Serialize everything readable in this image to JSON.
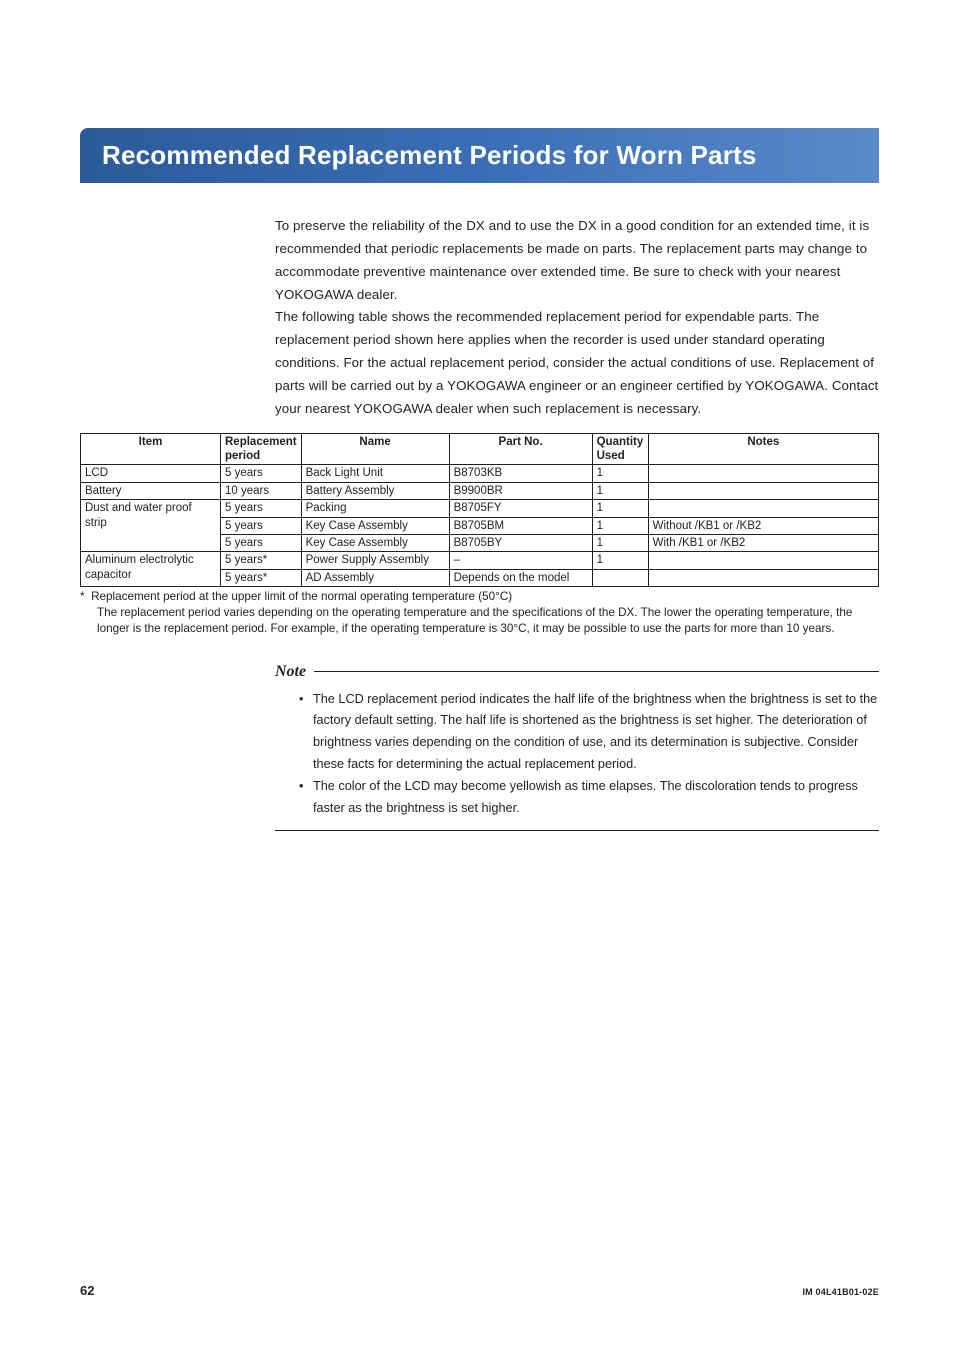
{
  "title": "Recommended Replacement Periods for Worn Parts",
  "intro_paragraphs": [
    "To preserve the reliability of the DX and to use the DX in a good condition for an extended time, it is recommended that periodic replacements be made on parts. The replacement parts may change to accommodate preventive maintenance over extended time. Be sure to check with your nearest YOKOGAWA dealer.",
    "The following table shows the recommended replacement period for expendable parts. The replacement period shown here applies when the recorder is used under standard operating conditions. For the actual replacement period, consider the actual conditions of use. Replacement of parts will be carried out by a YOKOGAWA engineer or an engineer certified by YOKOGAWA. Contact your nearest YOKOGAWA dealer when such replacement is necessary."
  ],
  "table": {
    "columns": [
      "Item",
      "Replacement period",
      "Name",
      "Part No.",
      "Quantity Used",
      "Notes"
    ],
    "column_align": [
      "center",
      "left",
      "center",
      "center",
      "left",
      "center"
    ],
    "rows": [
      {
        "item": "LCD",
        "period": "5 years",
        "name": "Back Light Unit",
        "part": "B8703KB",
        "qty": "1",
        "notes": "",
        "first_in_group": true,
        "rowspan": 1
      },
      {
        "item": "Battery",
        "period": "10 years",
        "name": "Battery Assembly",
        "part": "B9900BR",
        "qty": "1",
        "notes": "",
        "first_in_group": true,
        "rowspan": 1
      },
      {
        "item": "Dust and water proof strip",
        "period": "5 years",
        "name": "Packing",
        "part": "B8705FY",
        "qty": "1",
        "notes": "",
        "first_in_group": true,
        "rowspan": 3
      },
      {
        "item": "",
        "period": "5 years",
        "name": "Key Case Assembly",
        "part": "B8705BM",
        "qty": "1",
        "notes": "Without /KB1 or /KB2",
        "first_in_group": false
      },
      {
        "item": "",
        "period": "5 years",
        "name": "Key Case Assembly",
        "part": "B8705BY",
        "qty": "1",
        "notes": "With /KB1 or /KB2",
        "first_in_group": false
      },
      {
        "item": "Aluminum electrolytic capacitor",
        "period": "5 years*",
        "name": "Power Supply Assembly",
        "part": "–",
        "qty": "1",
        "notes": "",
        "first_in_group": true,
        "rowspan": 2
      },
      {
        "item": "",
        "period": "5 years*",
        "name": "AD Assembly",
        "part": "Depends on the model",
        "qty": "",
        "notes": "",
        "first_in_group": false
      }
    ]
  },
  "footnote": {
    "marker": "*",
    "line1": "Replacement period at the upper limit of the normal operating temperature (50°C)",
    "line2": "The replacement period varies depending on the operating temperature and the specifications of the DX. The lower the operating temperature, the longer is the replacement period. For example, if the operating temperature is 30°C, it may be possible to use the parts for more than 10 years."
  },
  "note": {
    "label": "Note",
    "items": [
      "The LCD replacement period indicates the half life of the brightness when the brightness is set to the factory default setting. The half life is shortened as the brightness is set higher. The deterioration of brightness varies depending on the condition of use, and its determination is subjective. Consider these facts for determining the actual replacement period.",
      "The color of the LCD may become yellowish as time elapses. The discoloration tends to progress faster as the brightness is set higher."
    ]
  },
  "footer": {
    "page_number": "62",
    "doc_id": "IM 04L41B01-02E"
  },
  "colors": {
    "title_bg_start": "#2c5a9a",
    "title_bg_end": "#5a8ac9",
    "title_text": "#ffffff",
    "body_text": "#231f20",
    "border": "#231f20"
  }
}
